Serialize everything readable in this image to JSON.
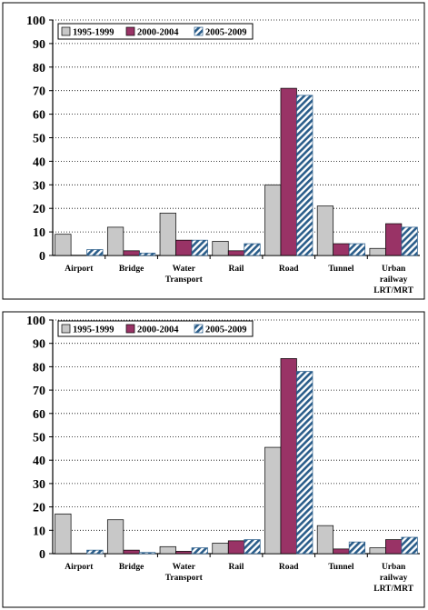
{
  "chart_data": [
    {
      "type": "bar",
      "categories": [
        [
          "Airport"
        ],
        [
          "Bridge"
        ],
        [
          "Water",
          "Transport"
        ],
        [
          "Rail"
        ],
        [
          "Road"
        ],
        [
          "Tunnel"
        ],
        [
          "Urban",
          "railway",
          "LRT/MRT"
        ]
      ],
      "series": [
        {
          "name": "1995-1999",
          "values": [
            9,
            12,
            18,
            6,
            30,
            21,
            3
          ],
          "color": "#c8c8c8",
          "pattern": "solid"
        },
        {
          "name": "2000-2004",
          "values": [
            0,
            2,
            6.5,
            2,
            71,
            5,
            13.5
          ],
          "color": "#993366",
          "pattern": "solid"
        },
        {
          "name": "2005-2009",
          "values": [
            2.5,
            1,
            6.5,
            5,
            68,
            5,
            12
          ],
          "color": "#9ec8e8",
          "pattern": "diagonal-hatch"
        }
      ],
      "yticks": [
        "0",
        "10",
        "20",
        "30",
        "40",
        "50",
        "60",
        "70",
        "80",
        "90",
        "100"
      ],
      "ylim": [
        0,
        100
      ],
      "grid": true,
      "legend_position": "top-left"
    },
    {
      "type": "bar",
      "categories": [
        [
          "Airport"
        ],
        [
          "Bridge"
        ],
        [
          "Water",
          "Transport"
        ],
        [
          "Rail"
        ],
        [
          "Road"
        ],
        [
          "Tunnel"
        ],
        [
          "Urban",
          "railway",
          "LRT/MRT"
        ]
      ],
      "series": [
        {
          "name": "1995-1999",
          "values": [
            17,
            14.5,
            3,
            4.5,
            45.5,
            12,
            2.5
          ],
          "color": "#c8c8c8",
          "pattern": "solid"
        },
        {
          "name": "2000-2004",
          "values": [
            0,
            1.5,
            1,
            5.5,
            83.5,
            2,
            6
          ],
          "color": "#993366",
          "pattern": "solid"
        },
        {
          "name": "2005-2009",
          "values": [
            1.5,
            0.5,
            2.5,
            6,
            78,
            5,
            7
          ],
          "color": "#9ec8e8",
          "pattern": "diagonal-hatch"
        }
      ],
      "yticks": [
        "0",
        "10",
        "20",
        "30",
        "40",
        "50",
        "60",
        "70",
        "80",
        "90",
        "100"
      ],
      "ylim": [
        0,
        100
      ],
      "grid": true,
      "legend_position": "top-left"
    }
  ]
}
